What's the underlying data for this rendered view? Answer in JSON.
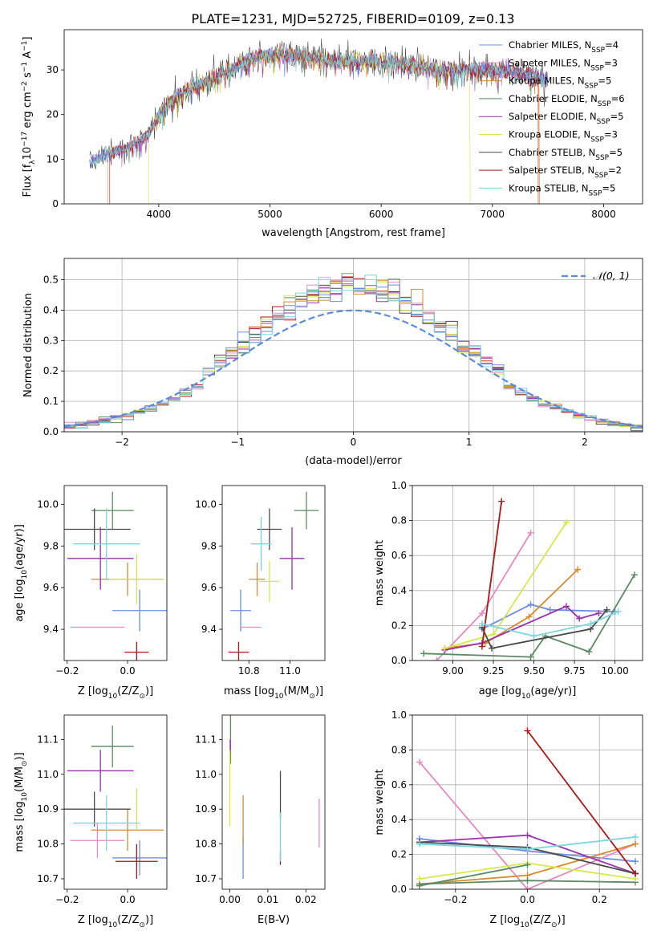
{
  "title": "PLATE=1231, MJD=52725, FIBERID=0109, z=0.13",
  "colors": {
    "chabrier_miles": "#6b8de3",
    "salpeter_miles": "#e68ac2",
    "kroupa_miles": "#d98a2b",
    "chabrier_elodie": "#5b8a63",
    "salpeter_elodie": "#9b30b0",
    "kroupa_elodie": "#d6e84a",
    "chabrier_stelib": "#4a4a4a",
    "salpeter_stelib": "#b01515",
    "kroupa_stelib": "#7ad6dc",
    "normal_curve": "#5b8bd9",
    "grid": "#b0b0b0"
  },
  "chart_data": [
    {
      "id": "spectrum",
      "type": "line",
      "xlabel": "wavelength [Angstrom, rest frame]",
      "ylabel": "Flux [f",
      "ylabel_sub": "λ",
      "ylabel_rest": "10",
      "ylabel_exp": "−17",
      "ylabel_tail": " erg cm",
      "ylabel_exp2": "−2",
      "ylabel_tail2": " s",
      "ylabel_exp3": "−1",
      "ylabel_tail3": " A",
      "ylabel_exp4": "−1",
      "ylabel_end": "]",
      "xlim": [
        3150,
        8350
      ],
      "ylim": [
        0,
        39
      ],
      "xticks": [
        4000,
        5000,
        6000,
        7000,
        8000
      ],
      "yticks": [
        0,
        10,
        20,
        30
      ],
      "grid": false,
      "legend_position": "top-right",
      "legend": [
        {
          "name": "Chabrier MILES, N",
          "sub": "SSP",
          "tail": "=4",
          "color_key": "chabrier_miles"
        },
        {
          "name": "Salpeter MILES, N",
          "sub": "SSP",
          "tail": "=3",
          "color_key": "salpeter_miles"
        },
        {
          "name": "Kroupa MILES, N",
          "sub": "SSP",
          "tail": "=5",
          "color_key": "kroupa_miles"
        },
        {
          "name": "Chabrier ELODIE, N",
          "sub": "SSP",
          "tail": "=6",
          "color_key": "chabrier_elodie"
        },
        {
          "name": "Salpeter ELODIE, N",
          "sub": "SSP",
          "tail": "=5",
          "color_key": "salpeter_elodie"
        },
        {
          "name": "Kroupa ELODIE, N",
          "sub": "SSP",
          "tail": "=3",
          "color_key": "kroupa_elodie"
        },
        {
          "name": "Chabrier STELIB, N",
          "sub": "SSP",
          "tail": "=5",
          "color_key": "chabrier_stelib"
        },
        {
          "name": "Salpeter STELIB, N",
          "sub": "SSP",
          "tail": "=2",
          "color_key": "salpeter_stelib"
        },
        {
          "name": "Kroupa STELIB, N",
          "sub": "SSP",
          "tail": "=5",
          "color_key": "kroupa_stelib"
        }
      ],
      "continuum": [
        [
          3380,
          9
        ],
        [
          3500,
          11
        ],
        [
          3650,
          12
        ],
        [
          3800,
          14
        ],
        [
          3900,
          15
        ],
        [
          4000,
          20
        ],
        [
          4100,
          23
        ],
        [
          4300,
          26
        ],
        [
          4500,
          28
        ],
        [
          4700,
          31
        ],
        [
          4900,
          33
        ],
        [
          5100,
          33.5
        ],
        [
          5300,
          33
        ],
        [
          5500,
          32
        ],
        [
          5700,
          32
        ],
        [
          5900,
          32
        ],
        [
          6100,
          32
        ],
        [
          6300,
          31
        ],
        [
          6500,
          30
        ],
        [
          6700,
          30
        ],
        [
          6900,
          30
        ],
        [
          7100,
          30
        ],
        [
          7300,
          29
        ],
        [
          7500,
          28
        ]
      ],
      "cutoffs": [
        {
          "color_key": "salpeter_stelib",
          "range": [
            3560,
            7420
          ]
        },
        {
          "color_key": "kroupa_elodie",
          "range": [
            3910,
            6800
          ]
        },
        {
          "color_key": "kroupa_miles",
          "range": [
            3540,
            7410
          ]
        }
      ]
    },
    {
      "id": "residuals",
      "type": "histogram",
      "xlabel": "(data-model)/error",
      "ylabel": "Normed distribution",
      "xlim": [
        -2.5,
        2.5
      ],
      "ylim": [
        0,
        0.57
      ],
      "xticks": [
        -2,
        -1,
        0,
        1,
        2
      ],
      "yticks": [
        0.0,
        0.1,
        0.2,
        0.3,
        0.4,
        0.5
      ],
      "grid": true,
      "legend_position": "top-right",
      "legend_label": "𝒩(0, 1)",
      "bin_width": 0.1
    },
    {
      "id": "age_vs_Z",
      "type": "errorbar",
      "xlabel": "Z [log",
      "xlabel_sub": "10",
      "xlabel_tail": "(Z/Z",
      "xlabel_sub2": "⊙",
      "xlabel_end": ")]",
      "ylabel": "age  [log",
      "ylabel_sub": "10",
      "ylabel_tail": "(age/yr)]",
      "xlim": [
        -0.21,
        0.13
      ],
      "ylim": [
        9.25,
        10.09
      ],
      "xticks": [
        -0.2,
        0.0
      ],
      "yticks": [
        9.4,
        9.6,
        9.8,
        10.0
      ],
      "points": [
        {
          "color_key": "chabrier_miles",
          "x": 0.04,
          "xerr": 0.09,
          "y": 9.49,
          "yerr": 0.1
        },
        {
          "color_key": "salpeter_miles",
          "x": -0.1,
          "xerr": 0.09,
          "y": 9.41,
          "yerr": 0.0
        },
        {
          "color_key": "kroupa_miles",
          "x": 0.0,
          "xerr": 0.12,
          "y": 9.64,
          "yerr": 0.08
        },
        {
          "color_key": "chabrier_elodie",
          "x": -0.05,
          "xerr": 0.07,
          "y": 9.97,
          "yerr": 0.09
        },
        {
          "color_key": "salpeter_elodie",
          "x": -0.09,
          "xerr": 0.11,
          "y": 9.74,
          "yerr": 0.15
        },
        {
          "color_key": "kroupa_elodie",
          "x": 0.03,
          "xerr": 0.09,
          "y": 9.64,
          "yerr": 0.12
        },
        {
          "color_key": "chabrier_stelib",
          "x": -0.11,
          "xerr": 0.12,
          "y": 9.88,
          "yerr": 0.1
        },
        {
          "color_key": "salpeter_stelib",
          "x": 0.03,
          "xerr": 0.04,
          "y": 9.29,
          "yerr": 0.05
        },
        {
          "color_key": "kroupa_stelib",
          "x": -0.07,
          "xerr": 0.11,
          "y": 9.81,
          "yerr": 0.17
        }
      ]
    },
    {
      "id": "age_vs_mass",
      "type": "errorbar",
      "xlabel": "mass [log",
      "xlabel_sub": "10",
      "xlabel_tail": "(M/M",
      "xlabel_sub2": "⊙",
      "xlabel_end": ")]",
      "xlim": [
        10.67,
        11.17
      ],
      "ylim": [
        9.25,
        10.09
      ],
      "xticks": [
        10.8,
        11.0
      ],
      "yticks": [
        9.4,
        9.6,
        9.8,
        10.0
      ],
      "points": [
        {
          "color_key": "chabrier_miles",
          "x": 10.76,
          "xerr": 0.05,
          "y": 9.49,
          "yerr": 0.1
        },
        {
          "color_key": "salpeter_miles",
          "x": 10.81,
          "xerr": 0.05,
          "y": 9.41,
          "yerr": 0.0
        },
        {
          "color_key": "kroupa_miles",
          "x": 10.84,
          "xerr": 0.04,
          "y": 9.64,
          "yerr": 0.08
        },
        {
          "color_key": "chabrier_elodie",
          "x": 11.08,
          "xerr": 0.06,
          "y": 9.97,
          "yerr": 0.09
        },
        {
          "color_key": "salpeter_elodie",
          "x": 11.01,
          "xerr": 0.06,
          "y": 9.74,
          "yerr": 0.15
        },
        {
          "color_key": "kroupa_elodie",
          "x": 10.9,
          "xerr": 0.05,
          "y": 9.63,
          "yerr": 0.1
        },
        {
          "color_key": "chabrier_stelib",
          "x": 10.9,
          "xerr": 0.06,
          "y": 9.88,
          "yerr": 0.1
        },
        {
          "color_key": "salpeter_stelib",
          "x": 10.75,
          "xerr": 0.05,
          "y": 9.29,
          "yerr": 0.05
        },
        {
          "color_key": "kroupa_stelib",
          "x": 10.86,
          "xerr": 0.05,
          "y": 9.81,
          "yerr": 0.13
        }
      ]
    },
    {
      "id": "weight_vs_age",
      "type": "line",
      "xlabel": "age  [log",
      "xlabel_sub": "10",
      "xlabel_tail": "(age/yr)]",
      "ylabel": "mass weight",
      "xlim": [
        8.75,
        10.17
      ],
      "ylim": [
        0,
        1.0
      ],
      "xticks": [
        9.0,
        9.25,
        9.5,
        9.75,
        10.0
      ],
      "xtick_labels": [
        "9.00",
        "9.25",
        "9.50",
        "9.75",
        "10.00"
      ],
      "yticks": [
        0.0,
        0.2,
        0.4,
        0.6,
        0.8,
        1.0
      ],
      "grid": true,
      "series": [
        {
          "color_key": "chabrier_miles",
          "x": [
            9.18,
            9.48,
            9.6,
            10.0
          ],
          "y": [
            0.18,
            0.32,
            0.29,
            0.28
          ]
        },
        {
          "color_key": "salpeter_miles",
          "x": [
            8.9,
            9.18,
            9.48
          ],
          "y": [
            0.0,
            0.27,
            0.73
          ]
        },
        {
          "color_key": "kroupa_miles",
          "x": [
            8.95,
            9.2,
            9.47,
            9.77
          ],
          "y": [
            0.07,
            0.1,
            0.25,
            0.52
          ]
        },
        {
          "color_key": "chabrier_elodie",
          "x": [
            8.82,
            9.48,
            9.57,
            9.84,
            10.12
          ],
          "y": [
            0.04,
            0.02,
            0.14,
            0.05,
            0.49
          ]
        },
        {
          "color_key": "salpeter_elodie",
          "x": [
            8.95,
            9.18,
            9.7,
            9.78,
            9.9
          ],
          "y": [
            0.06,
            0.1,
            0.31,
            0.24,
            0.27
          ]
        },
        {
          "color_key": "kroupa_elodie",
          "x": [
            8.95,
            9.25,
            9.7
          ],
          "y": [
            0.07,
            0.15,
            0.79
          ]
        },
        {
          "color_key": "chabrier_stelib",
          "x": [
            9.18,
            9.24,
            9.85,
            9.95
          ],
          "y": [
            0.19,
            0.07,
            0.18,
            0.29
          ]
        },
        {
          "color_key": "salpeter_stelib",
          "x": [
            9.18,
            9.3
          ],
          "y": [
            0.08,
            0.91
          ]
        },
        {
          "color_key": "kroupa_stelib",
          "x": [
            9.18,
            9.5,
            9.85,
            10.02
          ],
          "y": [
            0.21,
            0.14,
            0.21,
            0.28
          ]
        }
      ]
    },
    {
      "id": "mass_vs_Z",
      "type": "errorbar",
      "xlabel": "Z [log",
      "xlabel_sub": "10",
      "xlabel_tail": "(Z/Z",
      "xlabel_sub2": "⊙",
      "xlabel_end": ")]",
      "ylabel": "mass [log",
      "ylabel_sub": "10",
      "ylabel_tail": "(M/M",
      "ylabel_sub2": "⊙",
      "ylabel_end": ")]",
      "xlim": [
        -0.21,
        0.13
      ],
      "ylim": [
        10.67,
        11.17
      ],
      "xticks": [
        -0.2,
        0.0
      ],
      "yticks": [
        10.7,
        10.8,
        10.9,
        11.0,
        11.1
      ],
      "points": [
        {
          "color_key": "chabrier_miles",
          "x": 0.04,
          "xerr": 0.09,
          "y": 10.76,
          "yerr": 0.05
        },
        {
          "color_key": "salpeter_miles",
          "x": -0.1,
          "xerr": 0.09,
          "y": 10.81,
          "yerr": 0.05
        },
        {
          "color_key": "kroupa_miles",
          "x": 0.0,
          "xerr": 0.12,
          "y": 10.84,
          "yerr": 0.06
        },
        {
          "color_key": "chabrier_elodie",
          "x": -0.05,
          "xerr": 0.07,
          "y": 11.08,
          "yerr": 0.06
        },
        {
          "color_key": "salpeter_elodie",
          "x": -0.09,
          "xerr": 0.11,
          "y": 11.01,
          "yerr": 0.06
        },
        {
          "color_key": "kroupa_elodie",
          "x": 0.03,
          "xerr": 0.0,
          "y": 10.9,
          "yerr": 0.06
        },
        {
          "color_key": "chabrier_stelib",
          "x": -0.11,
          "xerr": 0.12,
          "y": 10.9,
          "yerr": 0.05
        },
        {
          "color_key": "salpeter_stelib",
          "x": 0.03,
          "xerr": 0.07,
          "y": 10.75,
          "yerr": 0.05
        },
        {
          "color_key": "kroupa_stelib",
          "x": -0.07,
          "xerr": 0.11,
          "y": 10.86,
          "yerr": 0.08
        }
      ]
    },
    {
      "id": "mass_vs_ebv",
      "type": "errorbar",
      "xlabel": "E(B-V)",
      "xlim": [
        -0.002,
        0.025
      ],
      "ylim": [
        10.67,
        11.17
      ],
      "xticks": [
        0.0,
        0.01,
        0.02
      ],
      "xtick_labels": [
        "0.00",
        "0.01",
        "0.02"
      ],
      "yticks": [
        10.7,
        10.8,
        10.9,
        11.0,
        11.1
      ],
      "points": [
        {
          "color_key": "chabrier_miles",
          "x": 0.0035,
          "y": 10.76,
          "yerr": 0.06
        },
        {
          "color_key": "salpeter_miles",
          "x": 0.0235,
          "y": 10.86,
          "yerr": 0.07
        },
        {
          "color_key": "kroupa_miles",
          "x": 0.0035,
          "y": 10.87,
          "yerr": 0.07
        },
        {
          "color_key": "chabrier_elodie",
          "x": 0.0002,
          "y": 11.1,
          "yerr": 0.07
        },
        {
          "color_key": "salpeter_elodie",
          "x": 0.0001,
          "y": 11.08,
          "yerr": 0.02
        },
        {
          "color_key": "kroupa_elodie",
          "x": 0.0,
          "y": 10.96,
          "yerr": 0.11
        },
        {
          "color_key": "chabrier_stelib",
          "x": 0.0133,
          "y": 10.94,
          "yerr": 0.07
        },
        {
          "color_key": "salpeter_stelib",
          "x": 0.0133,
          "y": 10.76,
          "yerr": 0.02
        },
        {
          "color_key": "kroupa_stelib",
          "x": 0.0133,
          "y": 10.82,
          "yerr": 0.07
        }
      ]
    },
    {
      "id": "weight_vs_Z",
      "type": "line",
      "xlabel": "Z [log",
      "xlabel_sub": "10",
      "xlabel_tail": "(Z/Z",
      "xlabel_sub2": "⊙",
      "xlabel_end": ")]",
      "ylabel": "mass weight",
      "xlim": [
        -0.32,
        0.32
      ],
      "ylim": [
        0,
        1.0
      ],
      "xticks": [
        -0.2,
        0.0,
        0.2
      ],
      "yticks": [
        0.0,
        0.2,
        0.4,
        0.6,
        0.8,
        1.0
      ],
      "grid": true,
      "series": [
        {
          "color_key": "chabrier_miles",
          "x": [
            -0.3,
            0.0,
            0.3
          ],
          "y": [
            0.29,
            0.22,
            0.16
          ]
        },
        {
          "color_key": "salpeter_miles",
          "x": [
            -0.3,
            0.0,
            0.3
          ],
          "y": [
            0.73,
            0.0,
            0.26
          ]
        },
        {
          "color_key": "kroupa_miles",
          "x": [
            -0.3,
            0.0,
            0.3
          ],
          "y": [
            0.03,
            0.08,
            0.26
          ]
        },
        {
          "color_key": "chabrier_elodie",
          "x": [
            -0.3,
            0.0,
            0.3
          ],
          "y": [
            0.03,
            0.05,
            0.04
          ]
        },
        {
          "color_key": "salpeter_elodie",
          "x": [
            -0.3,
            0.0,
            0.3
          ],
          "y": [
            0.27,
            0.31,
            0.09
          ]
        },
        {
          "color_key": "kroupa_elodie",
          "x": [
            -0.3,
            0.0,
            0.3
          ],
          "y": [
            0.06,
            0.15,
            0.06
          ]
        },
        {
          "color_key": "chabrier_stelib",
          "x": [
            -0.3,
            0.0,
            0.3
          ],
          "y": [
            0.27,
            0.24,
            0.09
          ]
        },
        {
          "color_key": "salpeter_stelib",
          "x": [
            0.0,
            0.3
          ],
          "y": [
            0.91,
            0.09
          ]
        },
        {
          "color_key": "kroupa_stelib",
          "x": [
            -0.3,
            0.0,
            0.3
          ],
          "y": [
            0.26,
            0.23,
            0.3
          ]
        },
        {
          "color_key": "chabrier_elodie",
          "x": [
            -0.3,
            0.0
          ],
          "y": [
            0.02,
            0.14
          ]
        }
      ]
    }
  ]
}
